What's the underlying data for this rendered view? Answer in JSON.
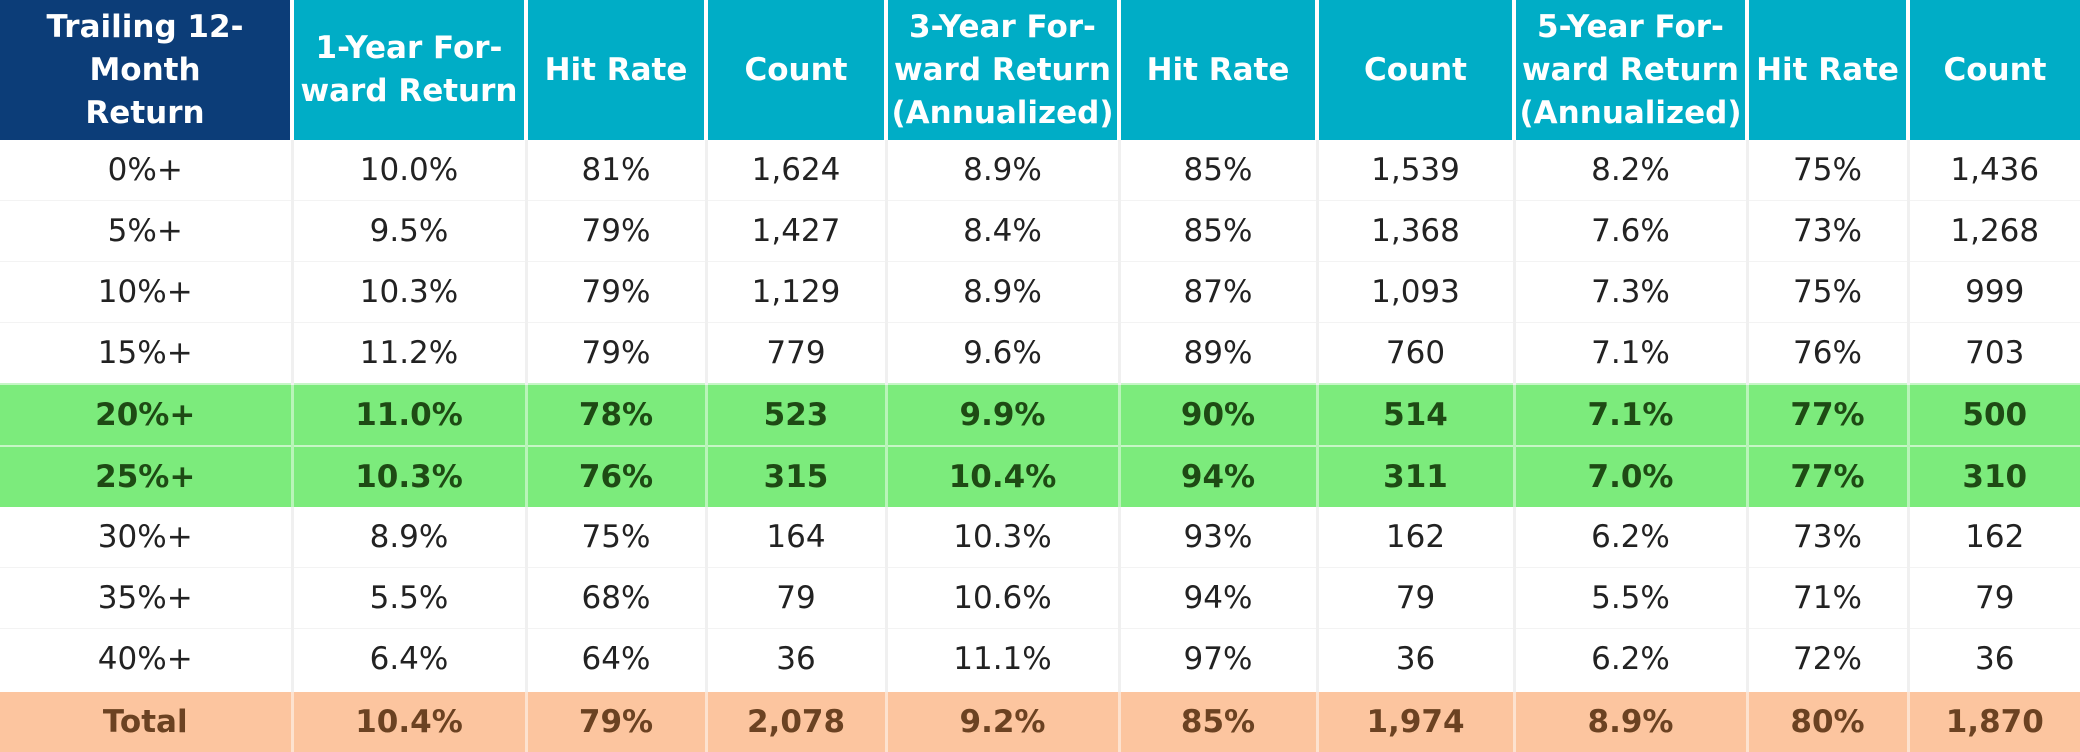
{
  "chart_data": {
    "type": "table",
    "columns": [
      "Trailing 12-Month Return",
      "1-Year For-ward Return",
      "Hit Rate",
      "Count",
      "3-Year For-ward Return (Annualized)",
      "Hit Rate",
      "Count",
      "5-Year For-ward Return (Annualized)",
      "Hit Rate",
      "Count"
    ],
    "header_lines": [
      [
        "Trailing 12-Month",
        "Return"
      ],
      [
        "1-Year For-",
        "ward Return"
      ],
      [
        "Hit Rate"
      ],
      [
        "Count"
      ],
      [
        "3-Year For-",
        "ward Return",
        "(Annualized)"
      ],
      [
        "Hit Rate"
      ],
      [
        "Count"
      ],
      [
        "5-Year For-",
        "ward Return",
        "(Annualized)"
      ],
      [
        "Hit Rate"
      ],
      [
        "Count"
      ]
    ],
    "rows": [
      [
        "0%+",
        "10.0%",
        "81%",
        "1,624",
        "8.9%",
        "85%",
        "1,539",
        "8.2%",
        "75%",
        "1,436"
      ],
      [
        "5%+",
        "9.5%",
        "79%",
        "1,427",
        "8.4%",
        "85%",
        "1,368",
        "7.6%",
        "73%",
        "1,268"
      ],
      [
        "10%+",
        "10.3%",
        "79%",
        "1,129",
        "8.9%",
        "87%",
        "1,093",
        "7.3%",
        "75%",
        "999"
      ],
      [
        "15%+",
        "11.2%",
        "79%",
        "779",
        "9.6%",
        "89%",
        "760",
        "7.1%",
        "76%",
        "703"
      ],
      [
        "20%+",
        "11.0%",
        "78%",
        "523",
        "9.9%",
        "90%",
        "514",
        "7.1%",
        "77%",
        "500"
      ],
      [
        "25%+",
        "10.3%",
        "76%",
        "315",
        "10.4%",
        "94%",
        "311",
        "7.0%",
        "77%",
        "310"
      ],
      [
        "30%+",
        "8.9%",
        "75%",
        "164",
        "10.3%",
        "93%",
        "162",
        "6.2%",
        "73%",
        "162"
      ],
      [
        "35%+",
        "5.5%",
        "68%",
        "79",
        "10.6%",
        "94%",
        "79",
        "5.5%",
        "71%",
        "79"
      ],
      [
        "40%+",
        "6.4%",
        "64%",
        "36",
        "11.1%",
        "97%",
        "36",
        "6.2%",
        "72%",
        "36"
      ],
      [
        "Total",
        "10.4%",
        "79%",
        "2,078",
        "9.2%",
        "85%",
        "1,974",
        "8.9%",
        "80%",
        "1,870"
      ]
    ],
    "row_styles": [
      "plain",
      "plain",
      "plain",
      "plain",
      "hl",
      "hl",
      "plain",
      "plain",
      "plain",
      "total"
    ],
    "colors": {
      "header_first": "#0c3d78",
      "header": "#00adc6",
      "highlight_rows": "#7ceb7c",
      "total_row": "#fcc59f"
    }
  }
}
